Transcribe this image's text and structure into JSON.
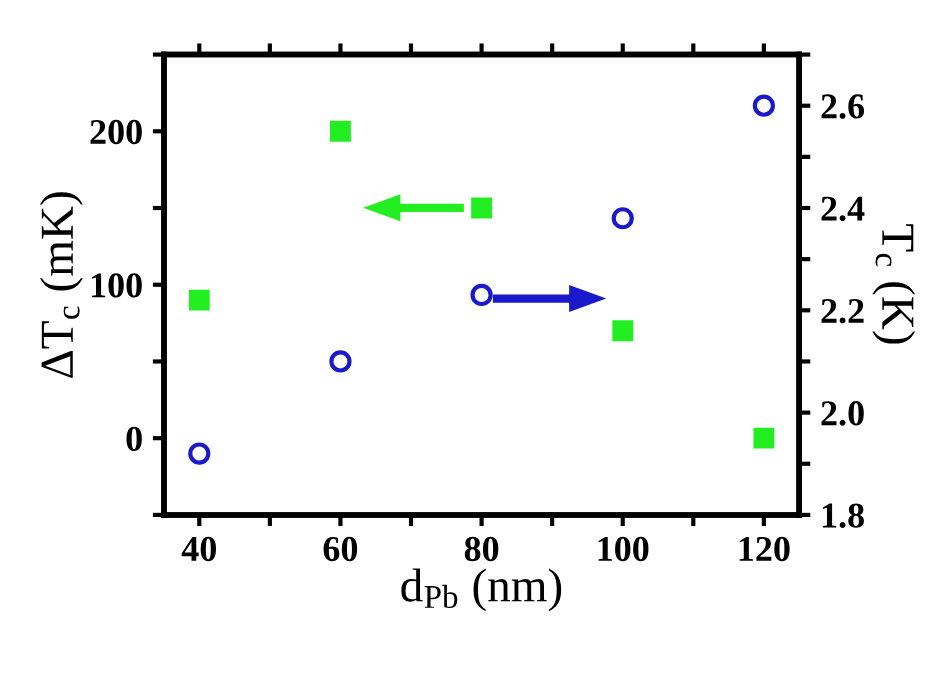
{
  "chart_data": {
    "type": "scatter",
    "xlabel": "d$_{Pb}$ (nm)",
    "ylabel": "ΔT$_{c}$ (mK)",
    "y2label": "T$_{c}$ (K)",
    "x": [
      40,
      60,
      80,
      100,
      120
    ],
    "series": [
      {
        "color": "#22ee22",
        "marker": "square",
        "values": [
          90,
          200,
          150,
          70,
          0
        ]
      },
      {
        "color": "#1a1acc",
        "marker": "circle",
        "axis": "y2",
        "values": [
          1.92,
          2.1,
          2.23,
          2.38,
          2.6
        ]
      }
    ],
    "xlim": [
      35,
      125
    ],
    "xticks": [
      40,
      {
        "value": 50,
        "label": null
      },
      60,
      {
        "value": 70,
        "label": null
      },
      80,
      {
        "value": 90,
        "label": null
      },
      100,
      {
        "value": 110,
        "label": null
      },
      120
    ],
    "ylim": [
      -50,
      250
    ],
    "yticks": [
      {
        "value": -50,
        "label": null
      },
      0,
      {
        "value": 50,
        "label": null
      },
      100,
      {
        "value": 150,
        "label": null
      },
      200,
      {
        "value": 250,
        "label": null
      }
    ],
    "y2lim": [
      1.8,
      2.7
    ],
    "y2ticks": [
      {
        "value": 1.8,
        "label": "1.8"
      },
      {
        "value": 1.9,
        "label": null
      },
      {
        "value": 2.0,
        "label": "2.0"
      },
      {
        "value": 2.1,
        "label": null
      },
      {
        "value": 2.2,
        "label": "2.2"
      },
      {
        "value": 2.3,
        "label": null
      },
      {
        "value": 2.4,
        "label": "2.4"
      },
      {
        "value": 2.5,
        "label": null
      },
      {
        "value": 2.6,
        "label": "2.6"
      },
      {
        "value": 2.7,
        "label": null
      }
    ],
    "grid": false,
    "legend": false
  }
}
